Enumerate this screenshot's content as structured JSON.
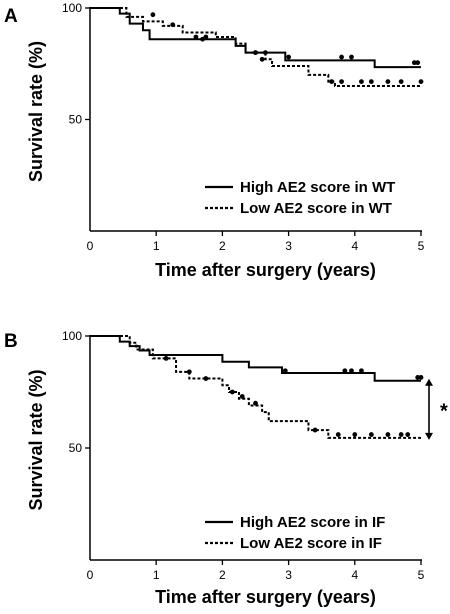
{
  "chart_data": [
    {
      "type": "line",
      "panel_label": "A",
      "xlabel": "Time after surgery (years)",
      "ylabel": "Survival rate (%)",
      "xlim": [
        0,
        5
      ],
      "ylim": [
        0,
        100
      ],
      "x_ticks": [
        "0",
        "1",
        "2",
        "3",
        "4",
        "5"
      ],
      "y_ticks": [
        "0",
        "50",
        "100"
      ],
      "legend_position": "bottom-right",
      "series": [
        {
          "name": "High AE2 score in WT",
          "style": "solid",
          "steps": [
            [
              0,
              100
            ],
            [
              0.45,
              97.5
            ],
            [
              0.6,
              93
            ],
            [
              0.8,
              90
            ],
            [
              0.9,
              86
            ],
            [
              1.5,
              86
            ],
            [
              2.0,
              86
            ],
            [
              2.2,
              83
            ],
            [
              2.35,
              80
            ],
            [
              2.95,
              76.5
            ],
            [
              4.3,
              73.5
            ],
            [
              5.0,
              73.5
            ]
          ],
          "censored": [
            [
              1.7,
              86
            ],
            [
              2.5,
              80
            ],
            [
              2.65,
              80
            ],
            [
              3.0,
              78
            ],
            [
              3.8,
              78
            ],
            [
              3.95,
              78
            ],
            [
              4.9,
              75.5
            ],
            [
              4.95,
              75.5
            ]
          ]
        },
        {
          "name": "Low AE2 score in WT",
          "style": "dotted",
          "steps": [
            [
              0,
              100
            ],
            [
              0.55,
              96
            ],
            [
              0.8,
              94
            ],
            [
              1.1,
              92
            ],
            [
              1.4,
              89
            ],
            [
              1.9,
              87
            ],
            [
              2.2,
              84
            ],
            [
              2.35,
              80
            ],
            [
              2.65,
              77
            ],
            [
              2.75,
              74
            ],
            [
              3.3,
              70
            ],
            [
              3.6,
              67
            ],
            [
              3.7,
              65
            ],
            [
              5.0,
              65
            ]
          ],
          "censored": [
            [
              0.95,
              97
            ],
            [
              1.25,
              92.5
            ],
            [
              1.6,
              87
            ],
            [
              1.75,
              87
            ],
            [
              2.5,
              80
            ],
            [
              2.6,
              77
            ],
            [
              3.65,
              67
            ],
            [
              3.8,
              67
            ],
            [
              4.1,
              67
            ],
            [
              4.25,
              67
            ],
            [
              4.5,
              67
            ],
            [
              4.7,
              67
            ],
            [
              5.0,
              67
            ]
          ]
        }
      ]
    },
    {
      "type": "line",
      "panel_label": "B",
      "xlabel": "Time after surgery (years)",
      "ylabel": "Survival rate (%)",
      "xlim": [
        0,
        5
      ],
      "ylim": [
        0,
        100
      ],
      "x_ticks": [
        "0",
        "1",
        "2",
        "3",
        "4",
        "5"
      ],
      "y_ticks": [
        "0",
        "50",
        "100"
      ],
      "legend_position": "bottom-right",
      "significance": {
        "label": "*",
        "between": [
          80,
          54.5
        ],
        "at_x": 5.15
      },
      "series": [
        {
          "name": "High AE2 score in IF",
          "style": "solid",
          "steps": [
            [
              0,
              100
            ],
            [
              0.45,
              97.5
            ],
            [
              0.6,
              95.5
            ],
            [
              0.75,
              93.5
            ],
            [
              0.9,
              91.5
            ],
            [
              2.0,
              88.5
            ],
            [
              2.4,
              86
            ],
            [
              2.9,
              83.5
            ],
            [
              4.3,
              80
            ],
            [
              5.0,
              80
            ]
          ],
          "censored": [
            [
              2.95,
              84.5
            ],
            [
              3.85,
              84.5
            ],
            [
              3.95,
              84.5
            ],
            [
              4.1,
              84.5
            ],
            [
              4.95,
              81.5
            ],
            [
              5.0,
              81.5
            ]
          ]
        },
        {
          "name": "Low AE2 score in IF",
          "style": "dotted",
          "steps": [
            [
              0,
              100
            ],
            [
              0.6,
              97
            ],
            [
              0.7,
              94
            ],
            [
              0.95,
              90
            ],
            [
              1.3,
              84
            ],
            [
              1.5,
              81
            ],
            [
              2.0,
              78
            ],
            [
              2.1,
              75
            ],
            [
              2.25,
              72
            ],
            [
              2.4,
              69
            ],
            [
              2.6,
              66
            ],
            [
              2.7,
              62
            ],
            [
              3.3,
              58
            ],
            [
              3.6,
              54.5
            ],
            [
              5.0,
              54.5
            ]
          ],
          "censored": [
            [
              1.15,
              90
            ],
            [
              1.5,
              84
            ],
            [
              1.75,
              81
            ],
            [
              2.15,
              75
            ],
            [
              2.3,
              73
            ],
            [
              2.5,
              70
            ],
            [
              3.4,
              58
            ],
            [
              3.75,
              56
            ],
            [
              4.0,
              56
            ],
            [
              4.25,
              56
            ],
            [
              4.5,
              56
            ],
            [
              4.7,
              56
            ],
            [
              4.8,
              56
            ]
          ]
        }
      ]
    }
  ]
}
